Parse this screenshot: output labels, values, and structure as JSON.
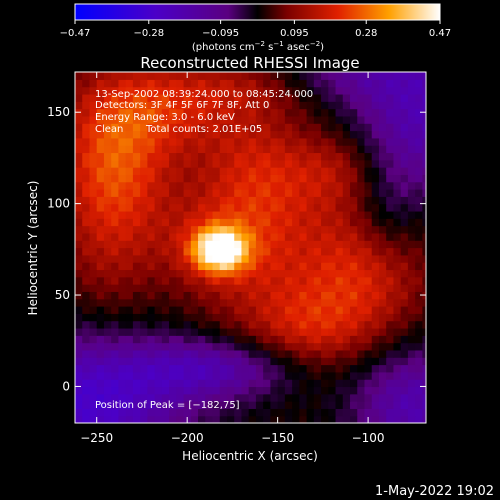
{
  "chart_data": {
    "type": "heatmap",
    "title": "Reconstructed RHESSI Image",
    "xlabel": "Heliocentric X (arcsec)",
    "ylabel": "Heliocentric Y (arcsec)",
    "xlim": [
      -262,
      -68
    ],
    "ylim": [
      -20,
      172
    ],
    "x_ticks": [
      -250,
      -200,
      -150,
      -100
    ],
    "y_ticks": [
      0,
      50,
      100,
      150
    ],
    "x_tick_labels": [
      "−250",
      "−200",
      "−150",
      "−100"
    ],
    "y_tick_labels": [
      "0",
      "50",
      "100",
      "150"
    ],
    "colorbar": {
      "range": [
        -0.47,
        0.47
      ],
      "ticks": [
        -0.47,
        -0.28,
        -0.095,
        0.095,
        0.28,
        0.47
      ],
      "tick_labels": [
        "−0.47",
        "−0.28",
        "−0.095",
        "0.095",
        "0.28",
        "0.47"
      ],
      "unit_parts": [
        "(photons cm",
        "−2",
        " s",
        "−1",
        " asec",
        "−2",
        ")"
      ]
    },
    "annotations": [
      "13-Sep-2002 08:39:24.000 to 08:45:24.000",
      "Detectors: 3F 4F 5F 6F 7F 8F, Att 0",
      "Energy Range: 3.0 - 6.0 keV",
      "Clean",
      "Total counts: 2.01E+05"
    ],
    "peak_label": "Position of Peak = [−182,75]",
    "peak": {
      "x": -182,
      "y": 75
    },
    "blobs": [
      {
        "x": -182,
        "y": 75,
        "sx": 10,
        "sy": 8,
        "amp": 0.4
      },
      {
        "x": -185,
        "y": 78,
        "sx": 22,
        "sy": 18,
        "amp": 0.1
      },
      {
        "x": -240,
        "y": 122,
        "sx": 22,
        "sy": 30,
        "amp": 0.22
      },
      {
        "x": -210,
        "y": 155,
        "sx": 32,
        "sy": 18,
        "amp": 0.15
      },
      {
        "x": -160,
        "y": 115,
        "sx": 25,
        "sy": 25,
        "amp": 0.16
      },
      {
        "x": -155,
        "y": 62,
        "sx": 35,
        "sy": 30,
        "amp": 0.1
      },
      {
        "x": -245,
        "y": 65,
        "sx": 20,
        "sy": 30,
        "amp": 0.08
      },
      {
        "x": -115,
        "y": 120,
        "sx": 18,
        "sy": 15,
        "amp": 0.11
      },
      {
        "x": -100,
        "y": 62,
        "sx": 25,
        "sy": 30,
        "amp": 0.16
      },
      {
        "x": -135,
        "y": 28,
        "sx": 25,
        "sy": 18,
        "amp": 0.12
      },
      {
        "x": -160,
        "y": 165,
        "sx": 25,
        "sy": 10,
        "amp": 0.08
      },
      {
        "x": -70,
        "y": 150,
        "sx": 30,
        "sy": 35,
        "amp": -0.22
      },
      {
        "x": -255,
        "y": -10,
        "sx": 40,
        "sy": 30,
        "amp": -0.28
      },
      {
        "x": -75,
        "y": -10,
        "sx": 25,
        "sy": 25,
        "amp": -0.22
      },
      {
        "x": -180,
        "y": 10,
        "sx": 35,
        "sy": 12,
        "amp": -0.2
      },
      {
        "x": -120,
        "y": 170,
        "sx": 30,
        "sy": 10,
        "amp": -0.1
      },
      {
        "x": -90,
        "y": 95,
        "sx": 12,
        "sy": 20,
        "amp": -0.08
      }
    ]
  },
  "footer": {
    "timestamp": "1-May-2022 19:02"
  }
}
